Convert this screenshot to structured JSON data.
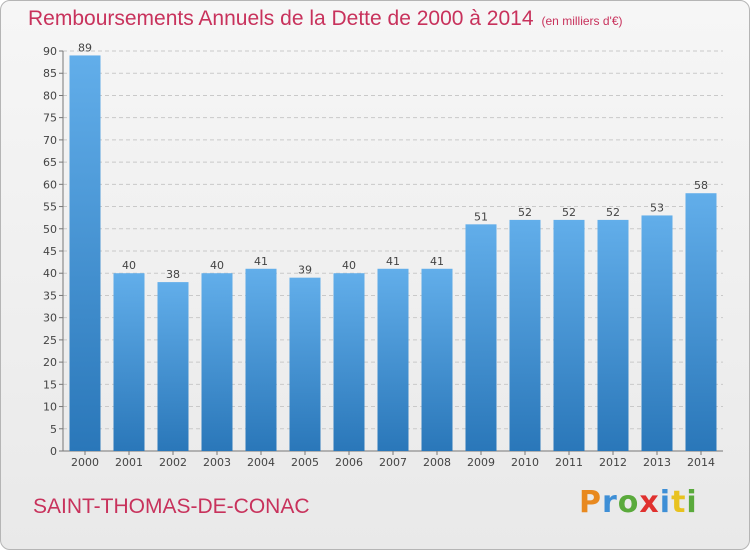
{
  "header": {
    "title": "Remboursements Annuels de la Dette de 2000 à 2014",
    "subtitle": "(en milliers d'€)"
  },
  "footer": {
    "city": "SAINT-THOMAS-DE-CONAC",
    "brand": "Proxiti"
  },
  "colors": {
    "title": "#c8325c",
    "bar_top": "#62aeea",
    "bar_bottom": "#2a77b9",
    "brand_letters": [
      "#e8891f",
      "#3e8fd6",
      "#5aaa3c",
      "#e0312f",
      "#3e8fd6",
      "#e8c21f",
      "#5aaa3c"
    ]
  },
  "chart_data": {
    "type": "bar",
    "title": "Remboursements Annuels de la Dette de 2000 à 2014",
    "subtitle": "(en milliers d'€)",
    "categories": [
      "2000",
      "2001",
      "2002",
      "2003",
      "2004",
      "2005",
      "2006",
      "2007",
      "2008",
      "2009",
      "2010",
      "2011",
      "2012",
      "2013",
      "2014"
    ],
    "values": [
      89,
      40,
      38,
      40,
      41,
      39,
      40,
      41,
      41,
      51,
      52,
      52,
      52,
      53,
      58
    ],
    "ylim": [
      0,
      90
    ],
    "yticks": [
      0,
      5,
      10,
      15,
      20,
      25,
      30,
      35,
      40,
      45,
      50,
      55,
      60,
      65,
      70,
      75,
      80,
      85,
      90
    ],
    "grid": "horizontal dashed",
    "legend": "none"
  }
}
